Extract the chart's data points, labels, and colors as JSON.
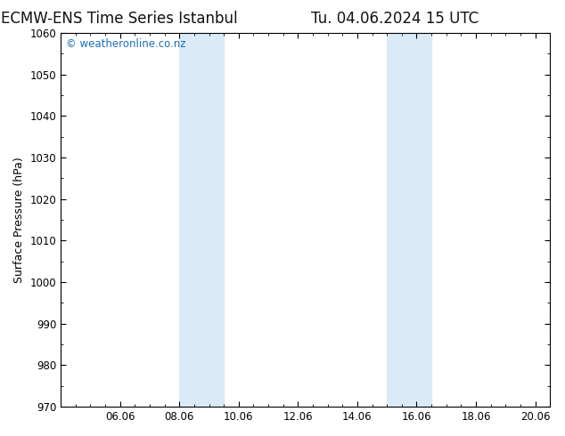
{
  "title_left": "ECMW-ENS Time Series Istanbul",
  "title_right": "Tu. 04.06.2024 15 UTC",
  "ylabel": "Surface Pressure (hPa)",
  "xlim": [
    4.0,
    20.5
  ],
  "ylim": [
    970,
    1060
  ],
  "yticks": [
    970,
    980,
    990,
    1000,
    1010,
    1020,
    1030,
    1040,
    1050,
    1060
  ],
  "xtick_positions": [
    6.0,
    8.0,
    10.0,
    12.0,
    14.0,
    16.0,
    18.0,
    20.0
  ],
  "xtick_labels": [
    "06.06",
    "08.06",
    "10.06",
    "12.06",
    "14.06",
    "16.06",
    "18.06",
    "20.06"
  ],
  "shaded_bands": [
    {
      "x_start": 8.0,
      "x_end": 9.5
    },
    {
      "x_start": 15.0,
      "x_end": 16.5
    }
  ],
  "shaded_color": "#daeaf7",
  "background_color": "#ffffff",
  "watermark_text": "© weatheronline.co.nz",
  "watermark_color": "#1a6eb5",
  "title_fontsize": 12,
  "axis_label_fontsize": 9,
  "tick_fontsize": 8.5,
  "watermark_fontsize": 8.5,
  "spine_color": "#000000"
}
